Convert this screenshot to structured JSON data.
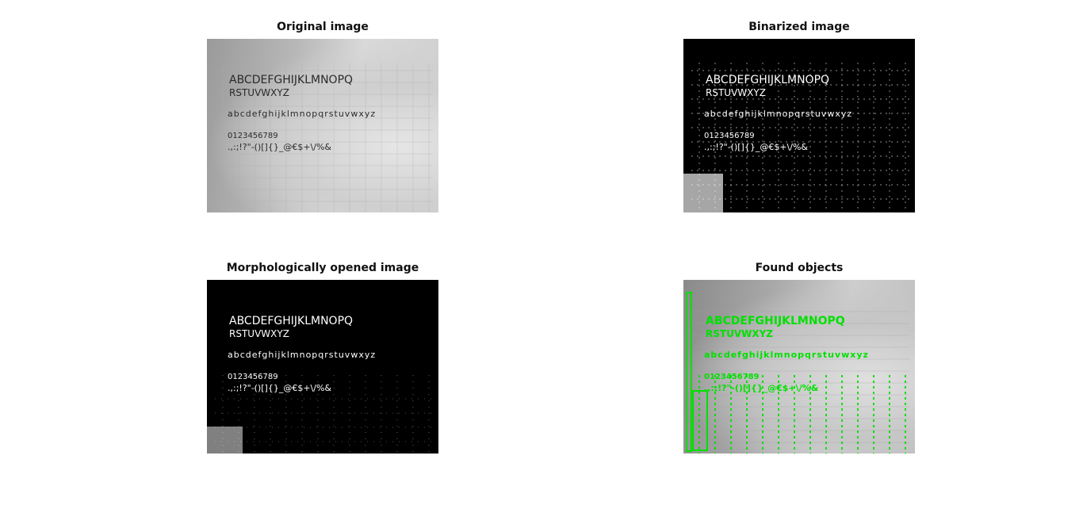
{
  "panels": {
    "original": {
      "title": "Original image"
    },
    "binarized": {
      "title": "Binarized image"
    },
    "opened": {
      "title": "Morphologically opened image"
    },
    "found": {
      "title": "Found objects"
    }
  },
  "handwriting": {
    "line1": "ABCDEFGHIJKLMNOPQ",
    "line2": "RSTUVWXYZ",
    "line3": "abcdefghijklmnopqrstuvwxyz",
    "line4": "0123456789",
    "line5": ".,:;!?\"-()[]{}_@€$+\\/%&"
  },
  "colors": {
    "found_box": "#00e000",
    "ink": "#2a2a2a",
    "binary_fg": "#ffffff",
    "binary_bg": "#000000"
  }
}
